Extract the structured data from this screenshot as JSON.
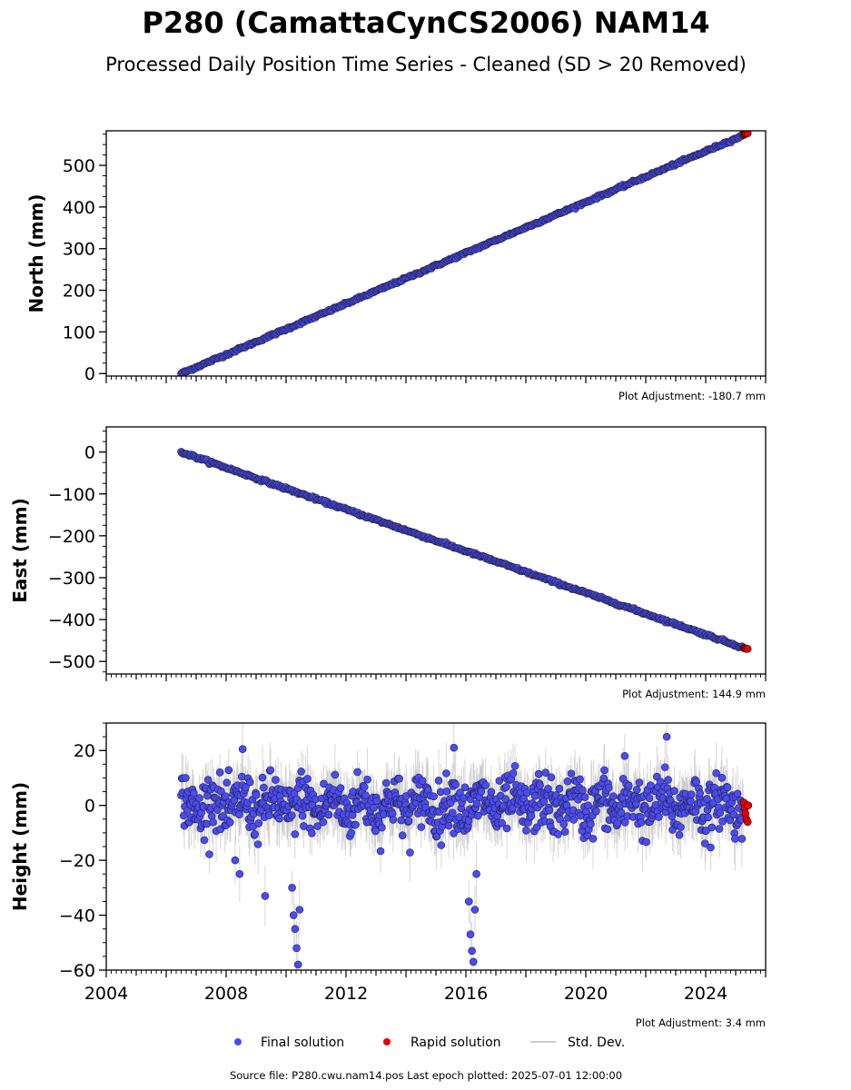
{
  "title": "P280 (CamattaCynCS2006) NAM14",
  "subtitle": "Processed Daily Position Time Series - Cleaned (SD > 20 Removed)",
  "footer": "Source file: P280.cwu.nam14.pos  Last epoch plotted: 2025-07-01 12:00:00",
  "legend": {
    "final": "Final solution",
    "rapid": "Rapid solution",
    "std": "Std. Dev.",
    "colors": {
      "final": "#4b4bf2",
      "rapid": "#e60000",
      "std": "#bbbbbb"
    },
    "position": "bottom-center"
  },
  "chart_data": [
    {
      "type": "scatter",
      "ylabel": "North (mm)",
      "adjustment": "Plot Adjustment: -180.7 mm",
      "xlim": [
        2004,
        2026
      ],
      "ylim": [
        -6,
        583
      ],
      "y_ticks": [
        0,
        100,
        200,
        300,
        400,
        500
      ],
      "x_ticks": [
        2004,
        2008,
        2012,
        2016,
        2020,
        2024
      ],
      "show_x_tick_labels": false,
      "series": [
        {
          "name": "Final solution",
          "model": "linear",
          "x": [
            2006.5,
            2025.25
          ],
          "y": [
            0,
            572
          ],
          "noise_sd": 1.5,
          "outliers": []
        },
        {
          "name": "Rapid solution",
          "x": [
            2025.28,
            2025.3,
            2025.33,
            2025.36,
            2025.4
          ],
          "y": [
            574,
            575,
            576,
            577,
            577
          ]
        }
      ]
    },
    {
      "type": "scatter",
      "ylabel": "East (mm)",
      "adjustment": "Plot Adjustment: 144.9 mm",
      "xlim": [
        2004,
        2026
      ],
      "ylim": [
        -530,
        60
      ],
      "y_ticks": [
        0,
        -100,
        -200,
        -300,
        -400,
        -500
      ],
      "x_ticks": [
        2004,
        2008,
        2012,
        2016,
        2020,
        2024
      ],
      "show_x_tick_labels": false,
      "series": [
        {
          "name": "Final solution",
          "model": "linear",
          "x": [
            2006.5,
            2025.25
          ],
          "y": [
            0,
            -467
          ],
          "noise_sd": 1.5,
          "outliers": []
        },
        {
          "name": "Rapid solution",
          "x": [
            2025.28,
            2025.3,
            2025.33,
            2025.36,
            2025.4
          ],
          "y": [
            -468,
            -469,
            -469,
            -470,
            -470
          ]
        }
      ]
    },
    {
      "type": "scatter",
      "ylabel": "Height (mm)",
      "adjustment": "Plot Adjustment: 3.4 mm",
      "xlim": [
        2004,
        2026
      ],
      "ylim": [
        -60,
        30
      ],
      "y_ticks": [
        20,
        0,
        -20,
        -40,
        -60
      ],
      "x_ticks": [
        2004,
        2008,
        2012,
        2016,
        2020,
        2024
      ],
      "show_x_tick_labels": true,
      "series": [
        {
          "name": "Final solution",
          "model": "seasonal",
          "x": [
            2006.5,
            2025.25
          ],
          "y": [
            0,
            0
          ],
          "noise_sd": 5,
          "outliers": [
            [
              2008.3,
              -20
            ],
            [
              2008.45,
              -25
            ],
            [
              2008.55,
              20.5
            ],
            [
              2009.3,
              -33
            ],
            [
              2010.2,
              -30
            ],
            [
              2010.25,
              -40
            ],
            [
              2010.3,
              -45
            ],
            [
              2010.35,
              -52
            ],
            [
              2010.4,
              -58
            ],
            [
              2010.45,
              -38
            ],
            [
              2016.1,
              -35
            ],
            [
              2016.15,
              -47
            ],
            [
              2016.2,
              -53
            ],
            [
              2016.25,
              -57
            ],
            [
              2016.3,
              -38
            ],
            [
              2016.35,
              -25
            ],
            [
              2015.6,
              21
            ],
            [
              2022.7,
              25
            ],
            [
              2021.3,
              18
            ]
          ]
        },
        {
          "name": "Rapid solution",
          "x": [
            2025.28,
            2025.3,
            2025.33,
            2025.36,
            2025.4,
            2025.42
          ],
          "y": [
            1,
            -1,
            -3,
            -5,
            -6,
            0
          ]
        }
      ]
    }
  ]
}
